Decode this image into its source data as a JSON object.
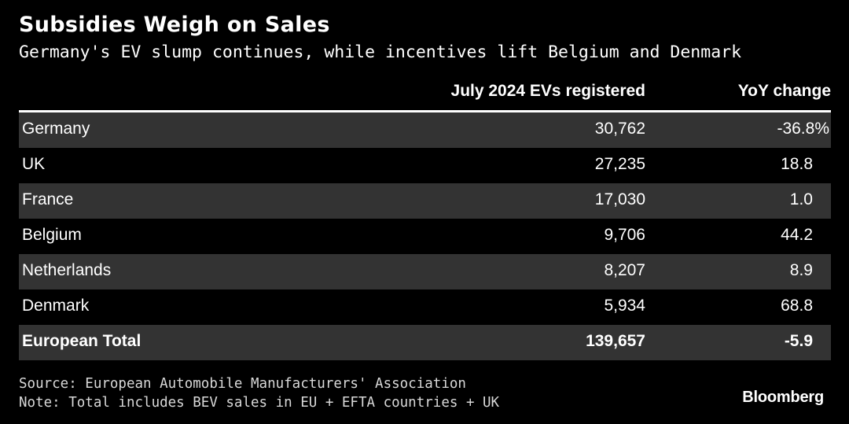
{
  "chart_data": {
    "type": "table",
    "title": "Subsidies Weigh on Sales",
    "subtitle": "Germany's EV slump continues, while incentives lift Belgium and Denmark",
    "columns": [
      "",
      "July 2024 EVs registered",
      "YoY change"
    ],
    "rows": [
      {
        "country": "Germany",
        "registered": "30,762",
        "yoy": "-36.8%",
        "value": 30762,
        "yoy_value": -36.8,
        "shaded": true
      },
      {
        "country": "UK",
        "registered": "27,235",
        "yoy": "18.8",
        "value": 27235,
        "yoy_value": 18.8,
        "shaded": false
      },
      {
        "country": "France",
        "registered": "17,030",
        "yoy": "1.0",
        "value": 17030,
        "yoy_value": 1.0,
        "shaded": true
      },
      {
        "country": "Belgium",
        "registered": "9,706",
        "yoy": "44.2",
        "value": 9706,
        "yoy_value": 44.2,
        "shaded": false
      },
      {
        "country": "Netherlands",
        "registered": "8,207",
        "yoy": "8.9",
        "value": 8207,
        "yoy_value": 8.9,
        "shaded": true
      },
      {
        "country": "Denmark",
        "registered": "5,934",
        "yoy": "68.8",
        "value": 5934,
        "yoy_value": 68.8,
        "shaded": false
      }
    ],
    "total": {
      "country": "European Total",
      "registered": "139,657",
      "yoy": "-5.9",
      "value": 139657,
      "yoy_value": -5.9
    },
    "source": "Source: European Automobile Manufacturers' Association",
    "note": "Note: Total includes BEV sales in EU + EFTA countries + UK",
    "brand": "Bloomberg"
  },
  "colors": {
    "background": "#000000",
    "text": "#ffffff",
    "row_shade": "#333333",
    "footer_text": "#d9d9d9"
  }
}
